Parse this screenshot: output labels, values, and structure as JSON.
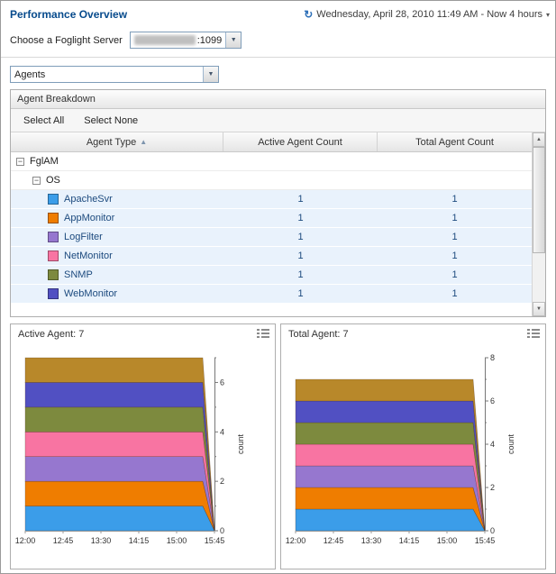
{
  "header": {
    "title": "Performance Overview",
    "time_range": "Wednesday, April 28, 2010 11:49 AM - Now 4 hours",
    "server_label": "Choose a Foglight Server",
    "server_port": ":1099"
  },
  "view_selector": {
    "value": "Agents"
  },
  "icons": {
    "clock": "↻",
    "caret": "▾",
    "dropdown": "▼",
    "collapse": "−",
    "sort_asc": "▲",
    "scroll_up": "▲",
    "scroll_down": "▼"
  },
  "panel": {
    "title": "Agent Breakdown",
    "toolbar": {
      "select_all": "Select All",
      "select_none": "Select None"
    },
    "columns": [
      "Agent Type",
      "Active Agent Count",
      "Total Agent Count"
    ],
    "tree": {
      "root": "FglAM",
      "group": "OS",
      "agents": [
        {
          "name": "ApacheSvr",
          "color": "#3b9de9",
          "active": "1",
          "total": "1"
        },
        {
          "name": "AppMonitor",
          "color": "#ef7d00",
          "active": "1",
          "total": "1"
        },
        {
          "name": "LogFilter",
          "color": "#9677cf",
          "active": "1",
          "total": "1"
        },
        {
          "name": "NetMonitor",
          "color": "#f874a2",
          "active": "1",
          "total": "1"
        },
        {
          "name": "SNMP",
          "color": "#7d8a3e",
          "active": "1",
          "total": "1"
        },
        {
          "name": "WebMonitor",
          "color": "#5150c2",
          "active": "1",
          "total": "1"
        }
      ]
    }
  },
  "chart_data": [
    {
      "type": "area",
      "title": "Active Agent: 7",
      "x": [
        "12:00",
        "12:45",
        "13:30",
        "14:15",
        "15:00",
        "15:45"
      ],
      "stack_values": [
        1,
        1,
        1,
        1,
        1,
        1,
        1
      ],
      "colors": [
        "#3b9de9",
        "#ef7d00",
        "#9677cf",
        "#f874a2",
        "#7d8a3e",
        "#5150c2",
        "#b8882a"
      ],
      "total": 7,
      "ylabel": "count",
      "ylim": [
        0,
        7
      ],
      "yticks": [
        0,
        2,
        4,
        6
      ],
      "legend": "none",
      "grid": false
    },
    {
      "type": "area",
      "title": "Total Agent: 7",
      "x": [
        "12:00",
        "12:45",
        "13:30",
        "14:15",
        "15:00",
        "15:45"
      ],
      "stack_values": [
        1,
        1,
        1,
        1,
        1,
        1,
        1
      ],
      "colors": [
        "#3b9de9",
        "#ef7d00",
        "#9677cf",
        "#f874a2",
        "#7d8a3e",
        "#5150c2",
        "#b8882a"
      ],
      "total": 7,
      "ylabel": "count",
      "ylim": [
        0,
        8
      ],
      "yticks": [
        0,
        2,
        4,
        6,
        8
      ],
      "legend": "none",
      "grid": false
    }
  ]
}
